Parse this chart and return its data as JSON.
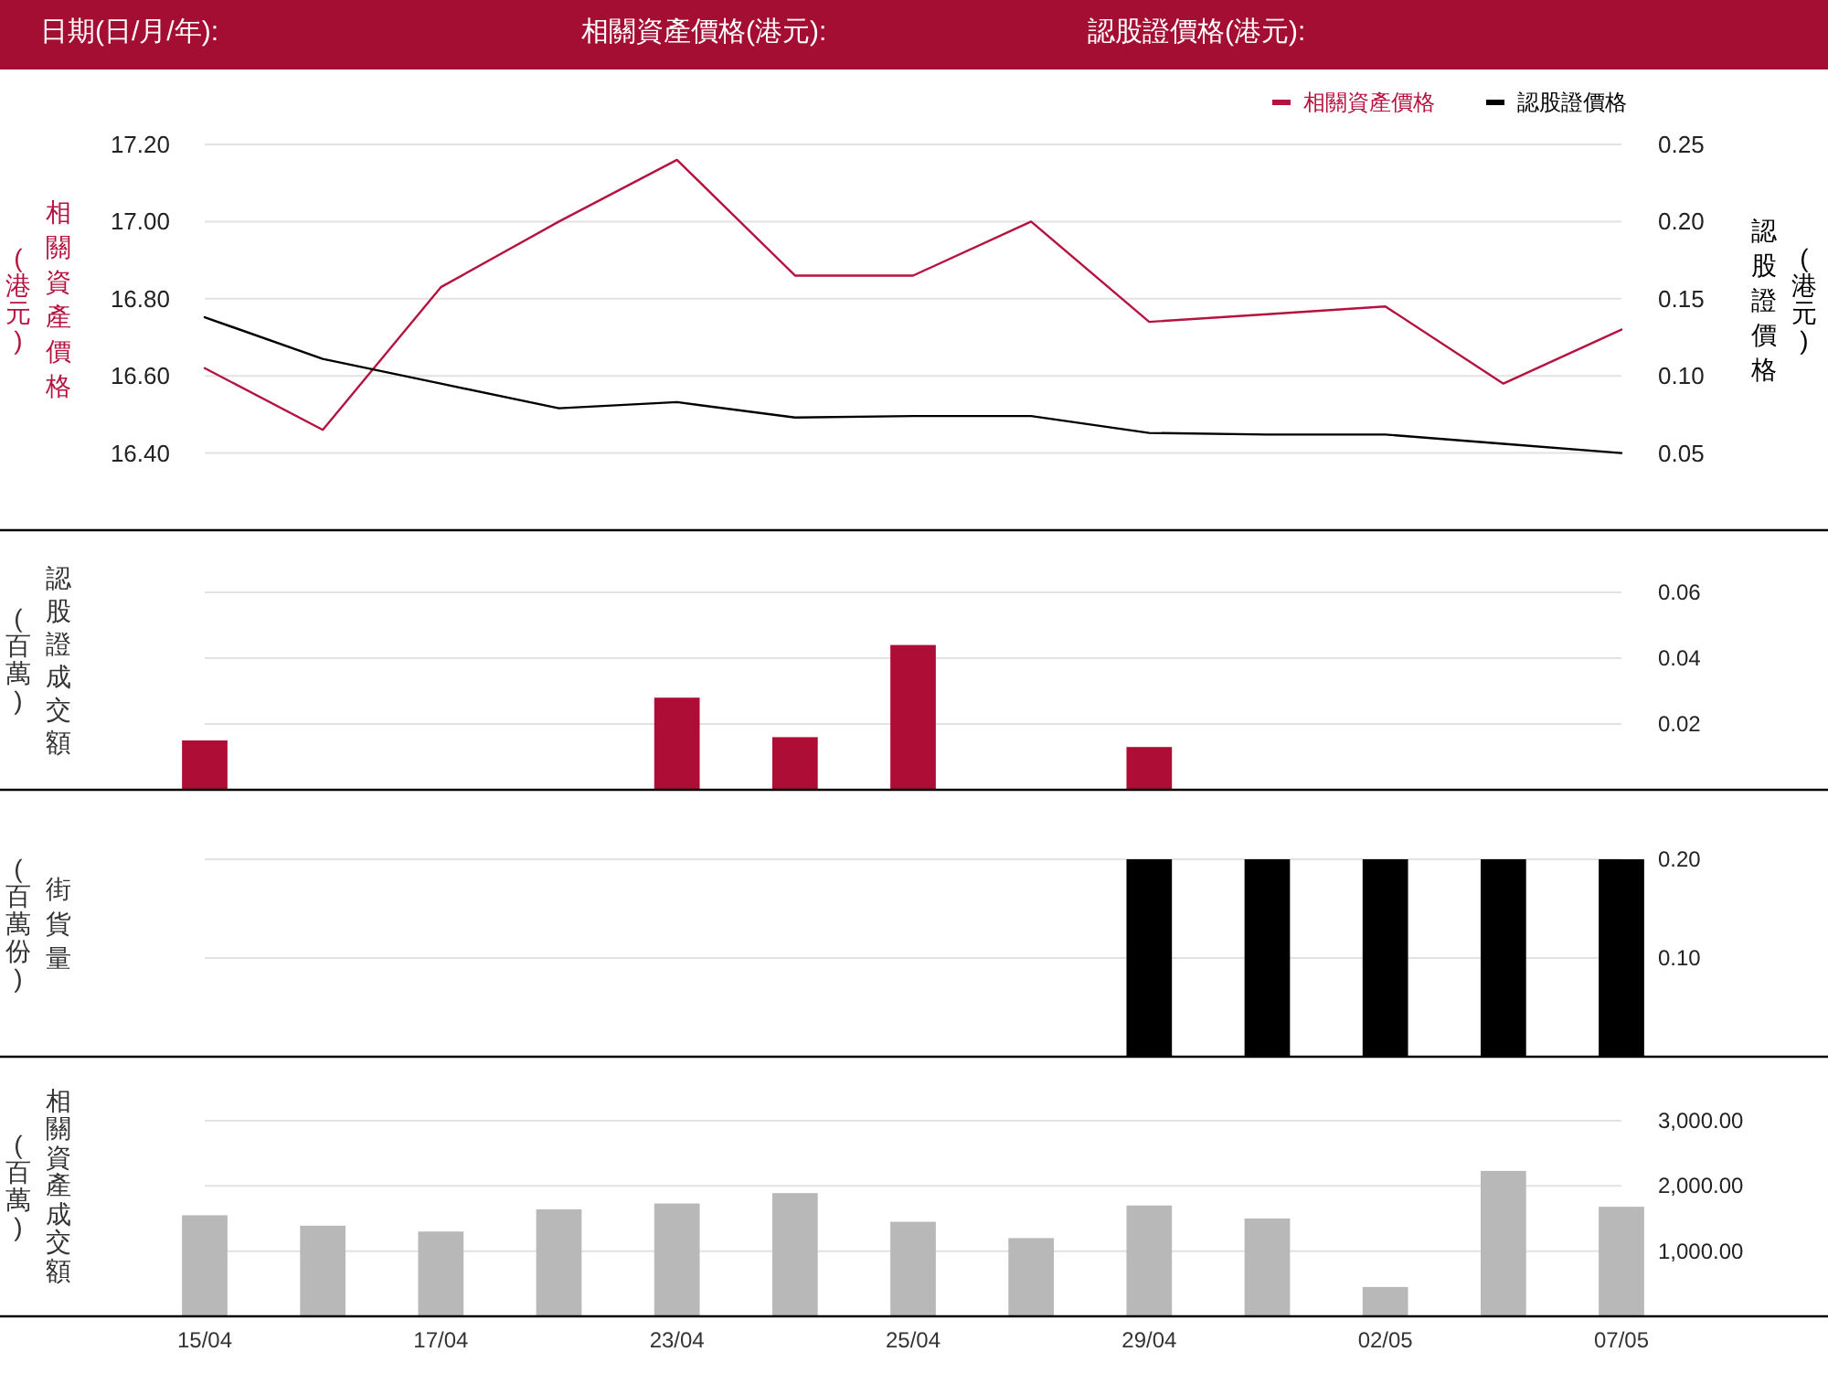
{
  "chart_data": [
    {
      "type": "other",
      "annotations": [
        "日期(日/月/年):",
        "相關資產價格(港元):",
        "認股證價格(港元):"
      ]
    },
    {
      "type": "line",
      "categories": [
        null,
        null,
        null,
        null,
        null,
        null,
        null,
        null,
        null,
        null,
        null,
        null,
        null
      ],
      "series": [
        {
          "name": "相關資產價格",
          "color": "#b5123f",
          "values": [
            16.62,
            16.46,
            16.83,
            17.0,
            17.16,
            16.86,
            16.86,
            17.0,
            16.74,
            16.76,
            16.78,
            16.58,
            16.72
          ]
        },
        {
          "name": "認股證價格",
          "color": "#000000",
          "axis": "y2",
          "values": [
            0.138,
            0.111,
            0.095,
            0.079,
            0.083,
            0.073,
            0.074,
            0.074,
            0.063,
            0.062,
            0.062,
            0.056,
            0.05
          ]
        }
      ],
      "ylabel": "相關資產價格(港元)",
      "y2label": "認股證價格(港元)",
      "ylim": [
        16.2,
        17.2
      ],
      "yticks": [
        {
          "value": 16.4,
          "label": "16.40"
        },
        {
          "value": 16.6,
          "label": "16.60"
        },
        {
          "value": 16.8,
          "label": "16.80"
        },
        {
          "value": 17.0,
          "label": "17.00"
        },
        {
          "value": 17.2,
          "label": "17.20"
        }
      ],
      "y2lim": [
        0,
        0.25
      ],
      "y2ticks": [
        0.05,
        {
          "value": 0.1,
          "label": "0.10"
        },
        0.15,
        {
          "value": 0.2,
          "label": "0.20"
        },
        0.25
      ],
      "grid": "y",
      "legend": "top right",
      "tick_labels": "y"
    },
    {
      "type": "bar",
      "categories": [
        null,
        null,
        null,
        null,
        null,
        null,
        null,
        null,
        null,
        null,
        null,
        null,
        null
      ],
      "values": [
        0.015,
        null,
        null,
        null,
        0.028,
        0.016,
        0.044,
        null,
        0.013,
        null,
        null,
        null,
        null
      ],
      "color": "#ae0e35",
      "ylabel": "認股證成交額(百萬)",
      "ylim": [
        0,
        0.06
      ],
      "yticks": [
        0.02,
        0.04,
        0.06
      ],
      "grid": "y",
      "tick_labels": "y"
    },
    {
      "type": "bar",
      "categories": [
        null,
        null,
        null,
        null,
        null,
        null,
        null,
        null,
        null,
        null,
        null,
        null,
        null
      ],
      "values": [
        null,
        null,
        null,
        null,
        null,
        null,
        null,
        null,
        0.2,
        0.2,
        0.2,
        0.2,
        0.2
      ],
      "color": "#000000",
      "ylabel": "街貨量(百萬份)",
      "ylim": [
        0,
        0.2
      ],
      "yticks": [
        {
          "value": 0.1,
          "label": "0.10"
        },
        {
          "value": 0.2,
          "label": "0.20"
        }
      ],
      "grid": "y",
      "tick_labels": "y"
    },
    {
      "type": "bar",
      "categories": [
        "15/04",
        null,
        "17/04",
        null,
        "23/04",
        null,
        "25/04",
        null,
        "29/04",
        null,
        "02/05",
        null,
        "07/05"
      ],
      "values": [
        1550,
        1390,
        1300,
        1640,
        1730,
        1890,
        1450,
        1200,
        1700,
        1500,
        450,
        2230,
        1680
      ],
      "color": "#b8b8b8",
      "ylabel": "相關資產成交額(百萬)",
      "ylim": [
        0,
        3000
      ],
      "yticks": [
        {
          "value": 1000,
          "label": "1,000.00"
        },
        {
          "value": 2000,
          "label": "2,000.00"
        },
        {
          "value": 3000,
          "label": "3,000.00"
        }
      ],
      "grid": "y"
    }
  ]
}
